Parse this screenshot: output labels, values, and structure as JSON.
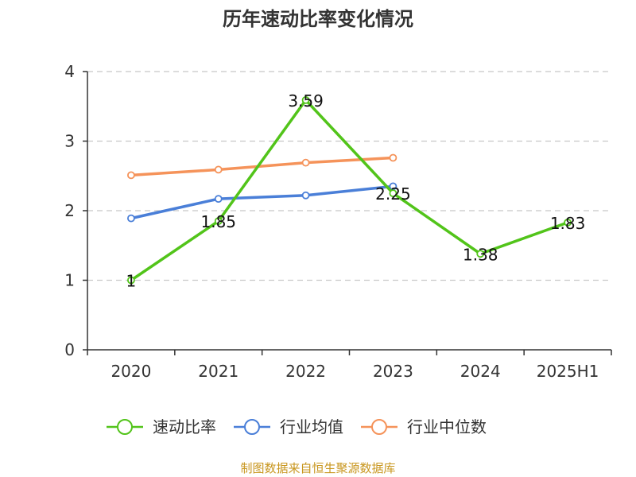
{
  "chart_data": {
    "type": "line",
    "title": "历年速动比率变化情况",
    "categories": [
      "2020",
      "2021",
      "2022",
      "2023",
      "2024",
      "2025H1"
    ],
    "ylim": [
      0,
      4
    ],
    "yticks": [
      0,
      1,
      2,
      3,
      4
    ],
    "grid": true,
    "legend_position": "bottom",
    "series": [
      {
        "name": "速动比率",
        "color": "#52c41a",
        "values": [
          1,
          1.85,
          3.59,
          2.25,
          1.38,
          1.83
        ],
        "labels": [
          "1",
          "1.85",
          "3.59",
          "2.25",
          "1.38",
          "1.83"
        ]
      },
      {
        "name": "行业均值",
        "color": "#4a7fd8",
        "values": [
          1.89,
          2.17,
          2.22,
          2.35,
          null,
          null
        ]
      },
      {
        "name": "行业中位数",
        "color": "#f5935a",
        "values": [
          2.51,
          2.59,
          2.69,
          2.76,
          null,
          null
        ]
      }
    ]
  },
  "source": "制图数据来自恒生聚源数据库"
}
